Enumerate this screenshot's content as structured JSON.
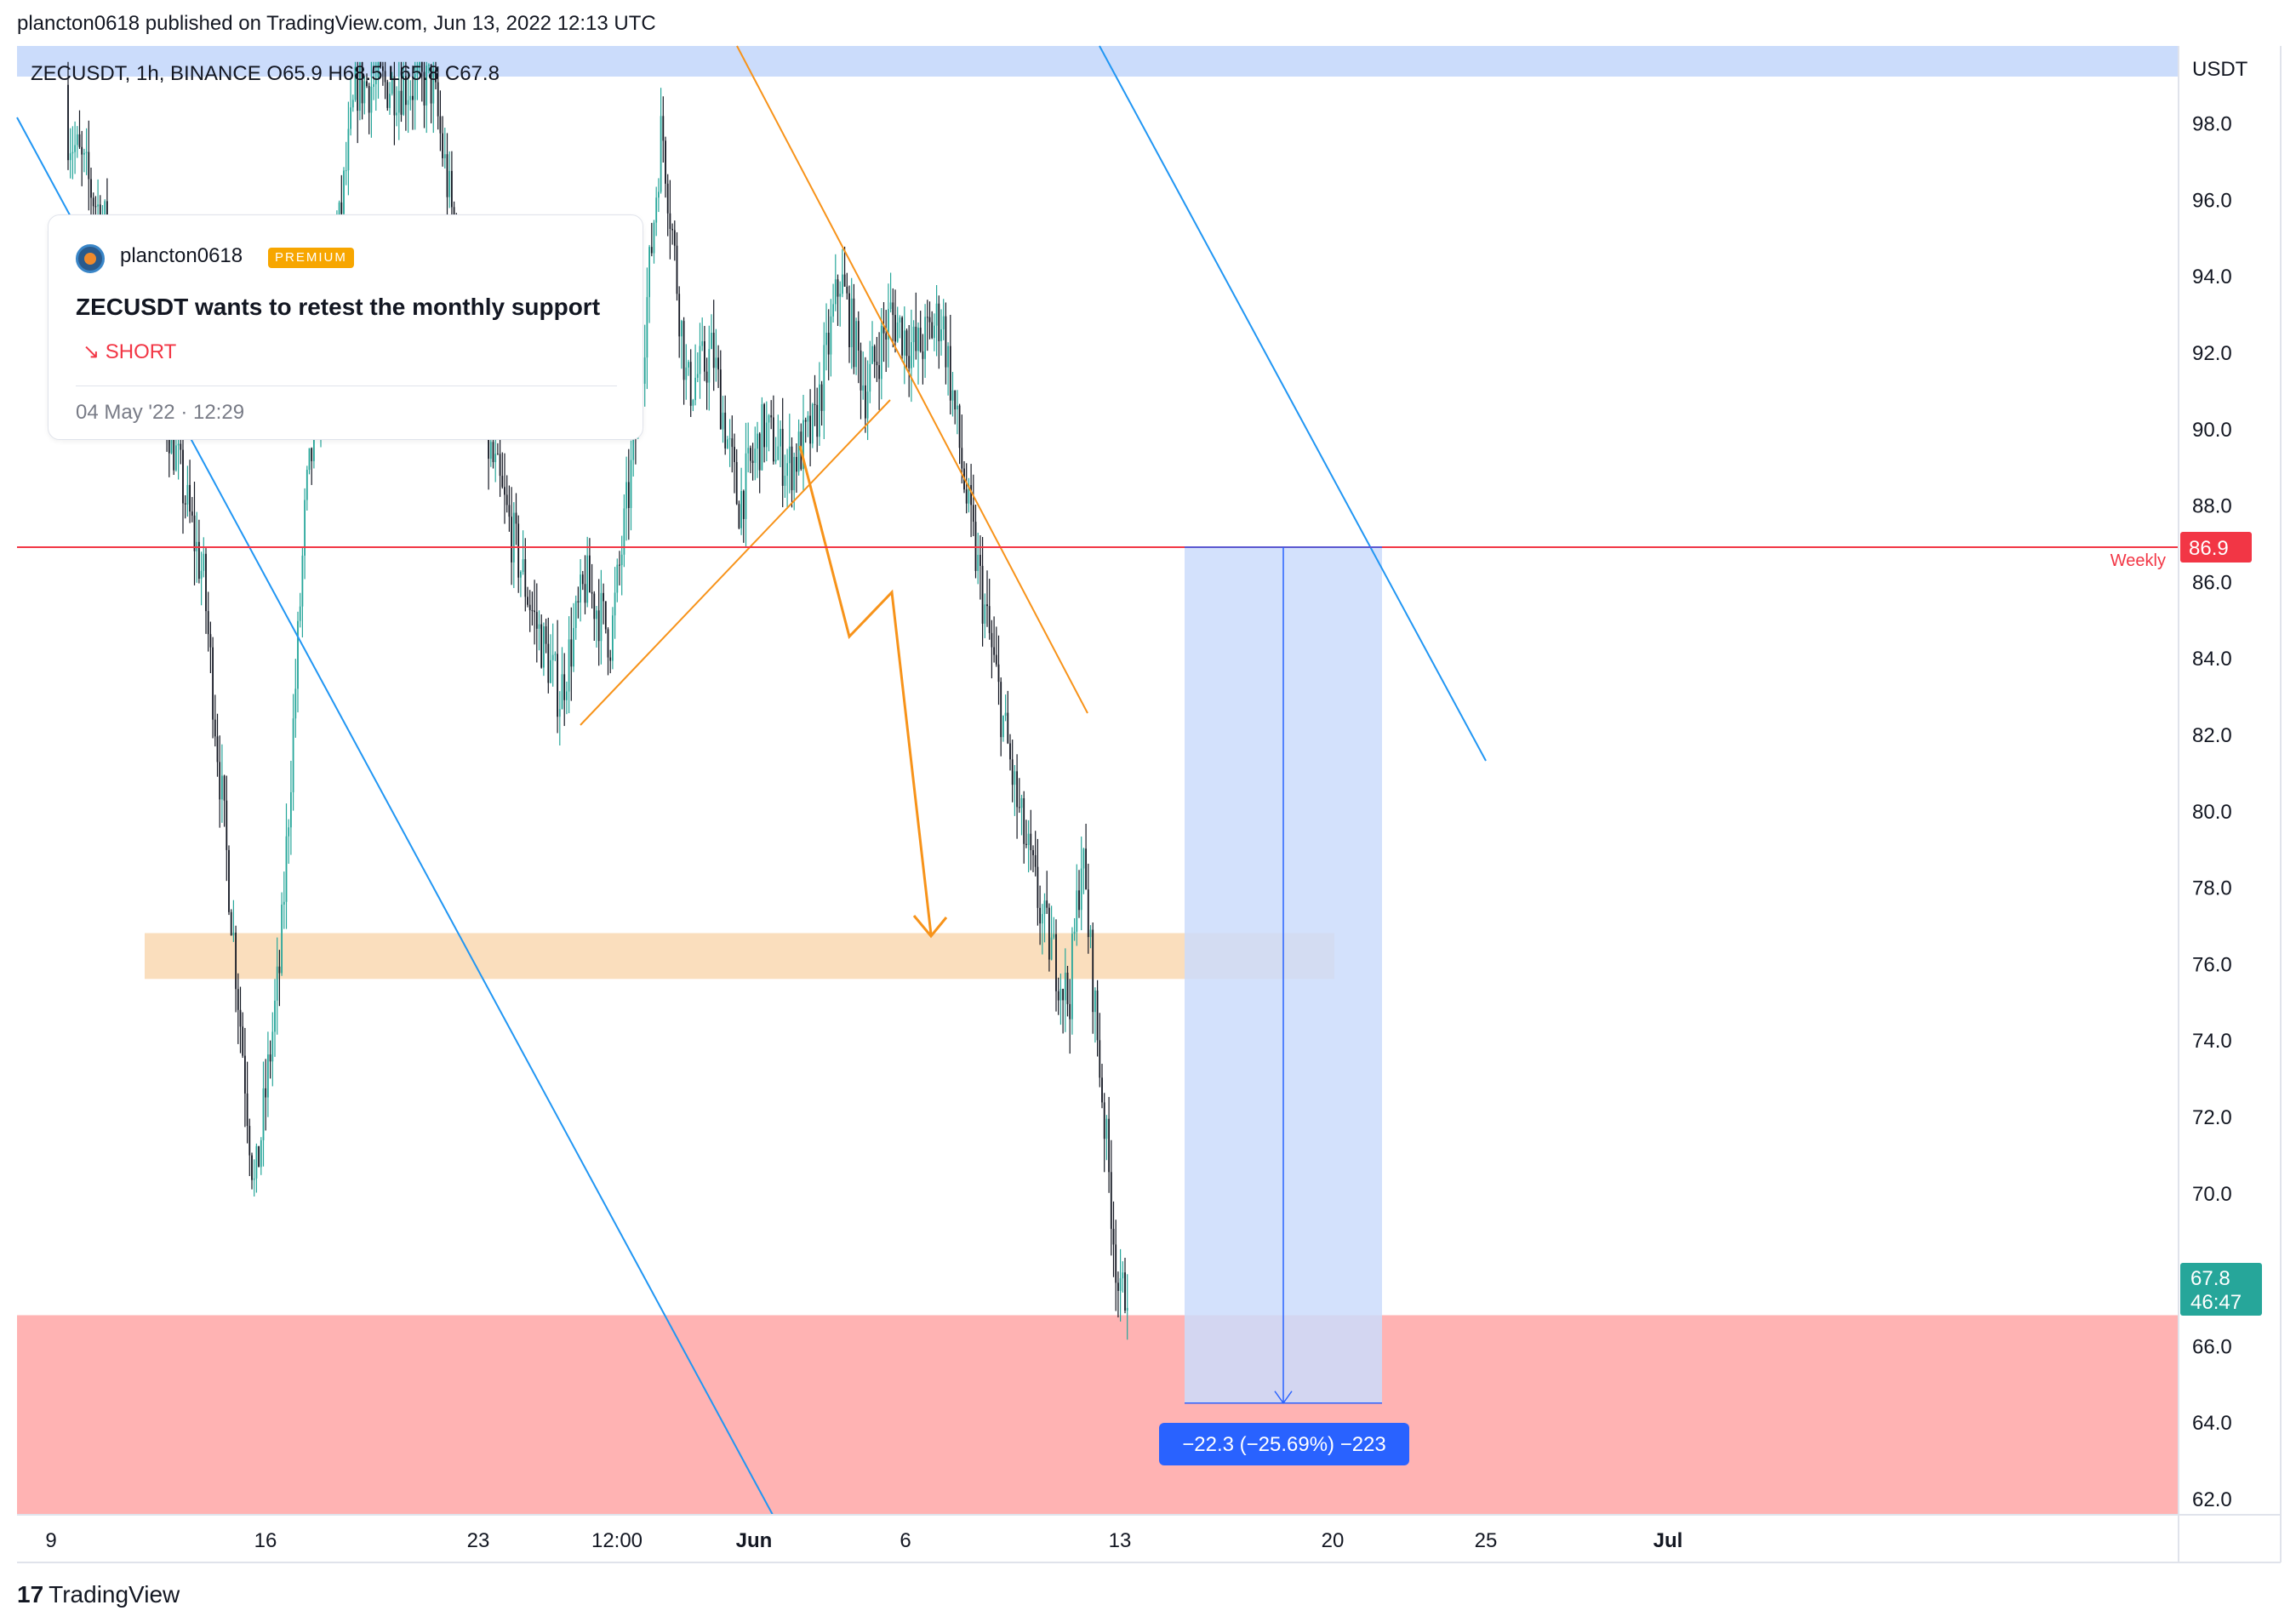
{
  "header": {
    "published": "plancton0618 published on TradingView.com, Jun 13, 2022 12:13 UTC"
  },
  "symbol_bar": {
    "text": "ZECUSDT, 1h, BINANCE  O65.9  H68.5  L65.8  C67.8"
  },
  "idea": {
    "username": "plancton0618",
    "badge": "PREMIUM",
    "title": "ZECUSDT wants to retest the monthly support",
    "direction": "↘ SHORT",
    "date": "04 May '22 · 12:29"
  },
  "footer": {
    "logo_mark": "17",
    "logo_text": "TradingView"
  },
  "colors": {
    "up": "#26a69a",
    "down": "#131722",
    "trendline": "#2196f3",
    "pattern": "#f7931a",
    "weekly_line": "#f23645",
    "red_zone": "#ffb3b3",
    "orange_zone": "#f9d8b2",
    "blue_zone": "#cbdcfb",
    "measure_label": "#2962ff"
  },
  "chart_data": {
    "type": "candlestick",
    "symbol": "ZECUSDT",
    "interval": "1h",
    "exchange": "BINANCE",
    "ohlc_last": {
      "open": 65.9,
      "high": 68.5,
      "low": 65.8,
      "close": 67.8
    },
    "currency": "USDT",
    "ylim": [
      61.0,
      99.5
    ],
    "y_ticks": [
      98.0,
      96.0,
      94.0,
      92.0,
      90.0,
      88.0,
      86.0,
      84.0,
      82.0,
      80.0,
      78.0,
      76.0,
      74.0,
      72.0,
      70.0,
      66.0,
      64.0,
      62.0
    ],
    "y_ticks_labels": [
      "98.0",
      "96.0",
      "94.0",
      "92.0",
      "90.0",
      "88.0",
      "86.0",
      "84.0",
      "82.0",
      "80.0",
      "78.0",
      "76.0",
      "74.0",
      "72.0",
      "70.0",
      "66.0",
      "64.0",
      "62.0"
    ],
    "x_ticks": [
      "9",
      "16",
      "23",
      "12:00",
      "Jun",
      "6",
      "13",
      "20",
      "25",
      "Jul"
    ],
    "price_path": [
      [
        0,
        99
      ],
      [
        4,
        92
      ],
      [
        6,
        86
      ],
      [
        7,
        78
      ],
      [
        8,
        70
      ],
      [
        9,
        76
      ],
      [
        10,
        88
      ],
      [
        12,
        99
      ],
      [
        15,
        99
      ],
      [
        17,
        90
      ],
      [
        19,
        85
      ],
      [
        20,
        83
      ],
      [
        21,
        86
      ],
      [
        22,
        84.5
      ],
      [
        23,
        90
      ],
      [
        24,
        98
      ],
      [
        25,
        91
      ],
      [
        26,
        92
      ],
      [
        27,
        88
      ],
      [
        28,
        90
      ],
      [
        29,
        89
      ],
      [
        30,
        90
      ],
      [
        31,
        94
      ],
      [
        32,
        91
      ],
      [
        33,
        93
      ],
      [
        34,
        92
      ],
      [
        35,
        93
      ],
      [
        36,
        88
      ],
      [
        37,
        84
      ],
      [
        38,
        80
      ],
      [
        39,
        77
      ],
      [
        40,
        75
      ],
      [
        40.5,
        79
      ],
      [
        41,
        75
      ],
      [
        41.5,
        71
      ],
      [
        42,
        67
      ],
      [
        42.3,
        67.8
      ]
    ],
    "weekly_level": {
      "value": 86.9,
      "label": "Weekly",
      "tag": "86.9"
    },
    "current_price": {
      "value": 67.8,
      "tag": "67.8",
      "countdown": "46:47"
    },
    "support_zone": [
      61.5,
      66.8
    ],
    "retest_zone": [
      75.6,
      76.8
    ],
    "measure": {
      "from": 86.9,
      "to": 64.5,
      "label": "−22.3 (−25.69%) −223"
    }
  }
}
